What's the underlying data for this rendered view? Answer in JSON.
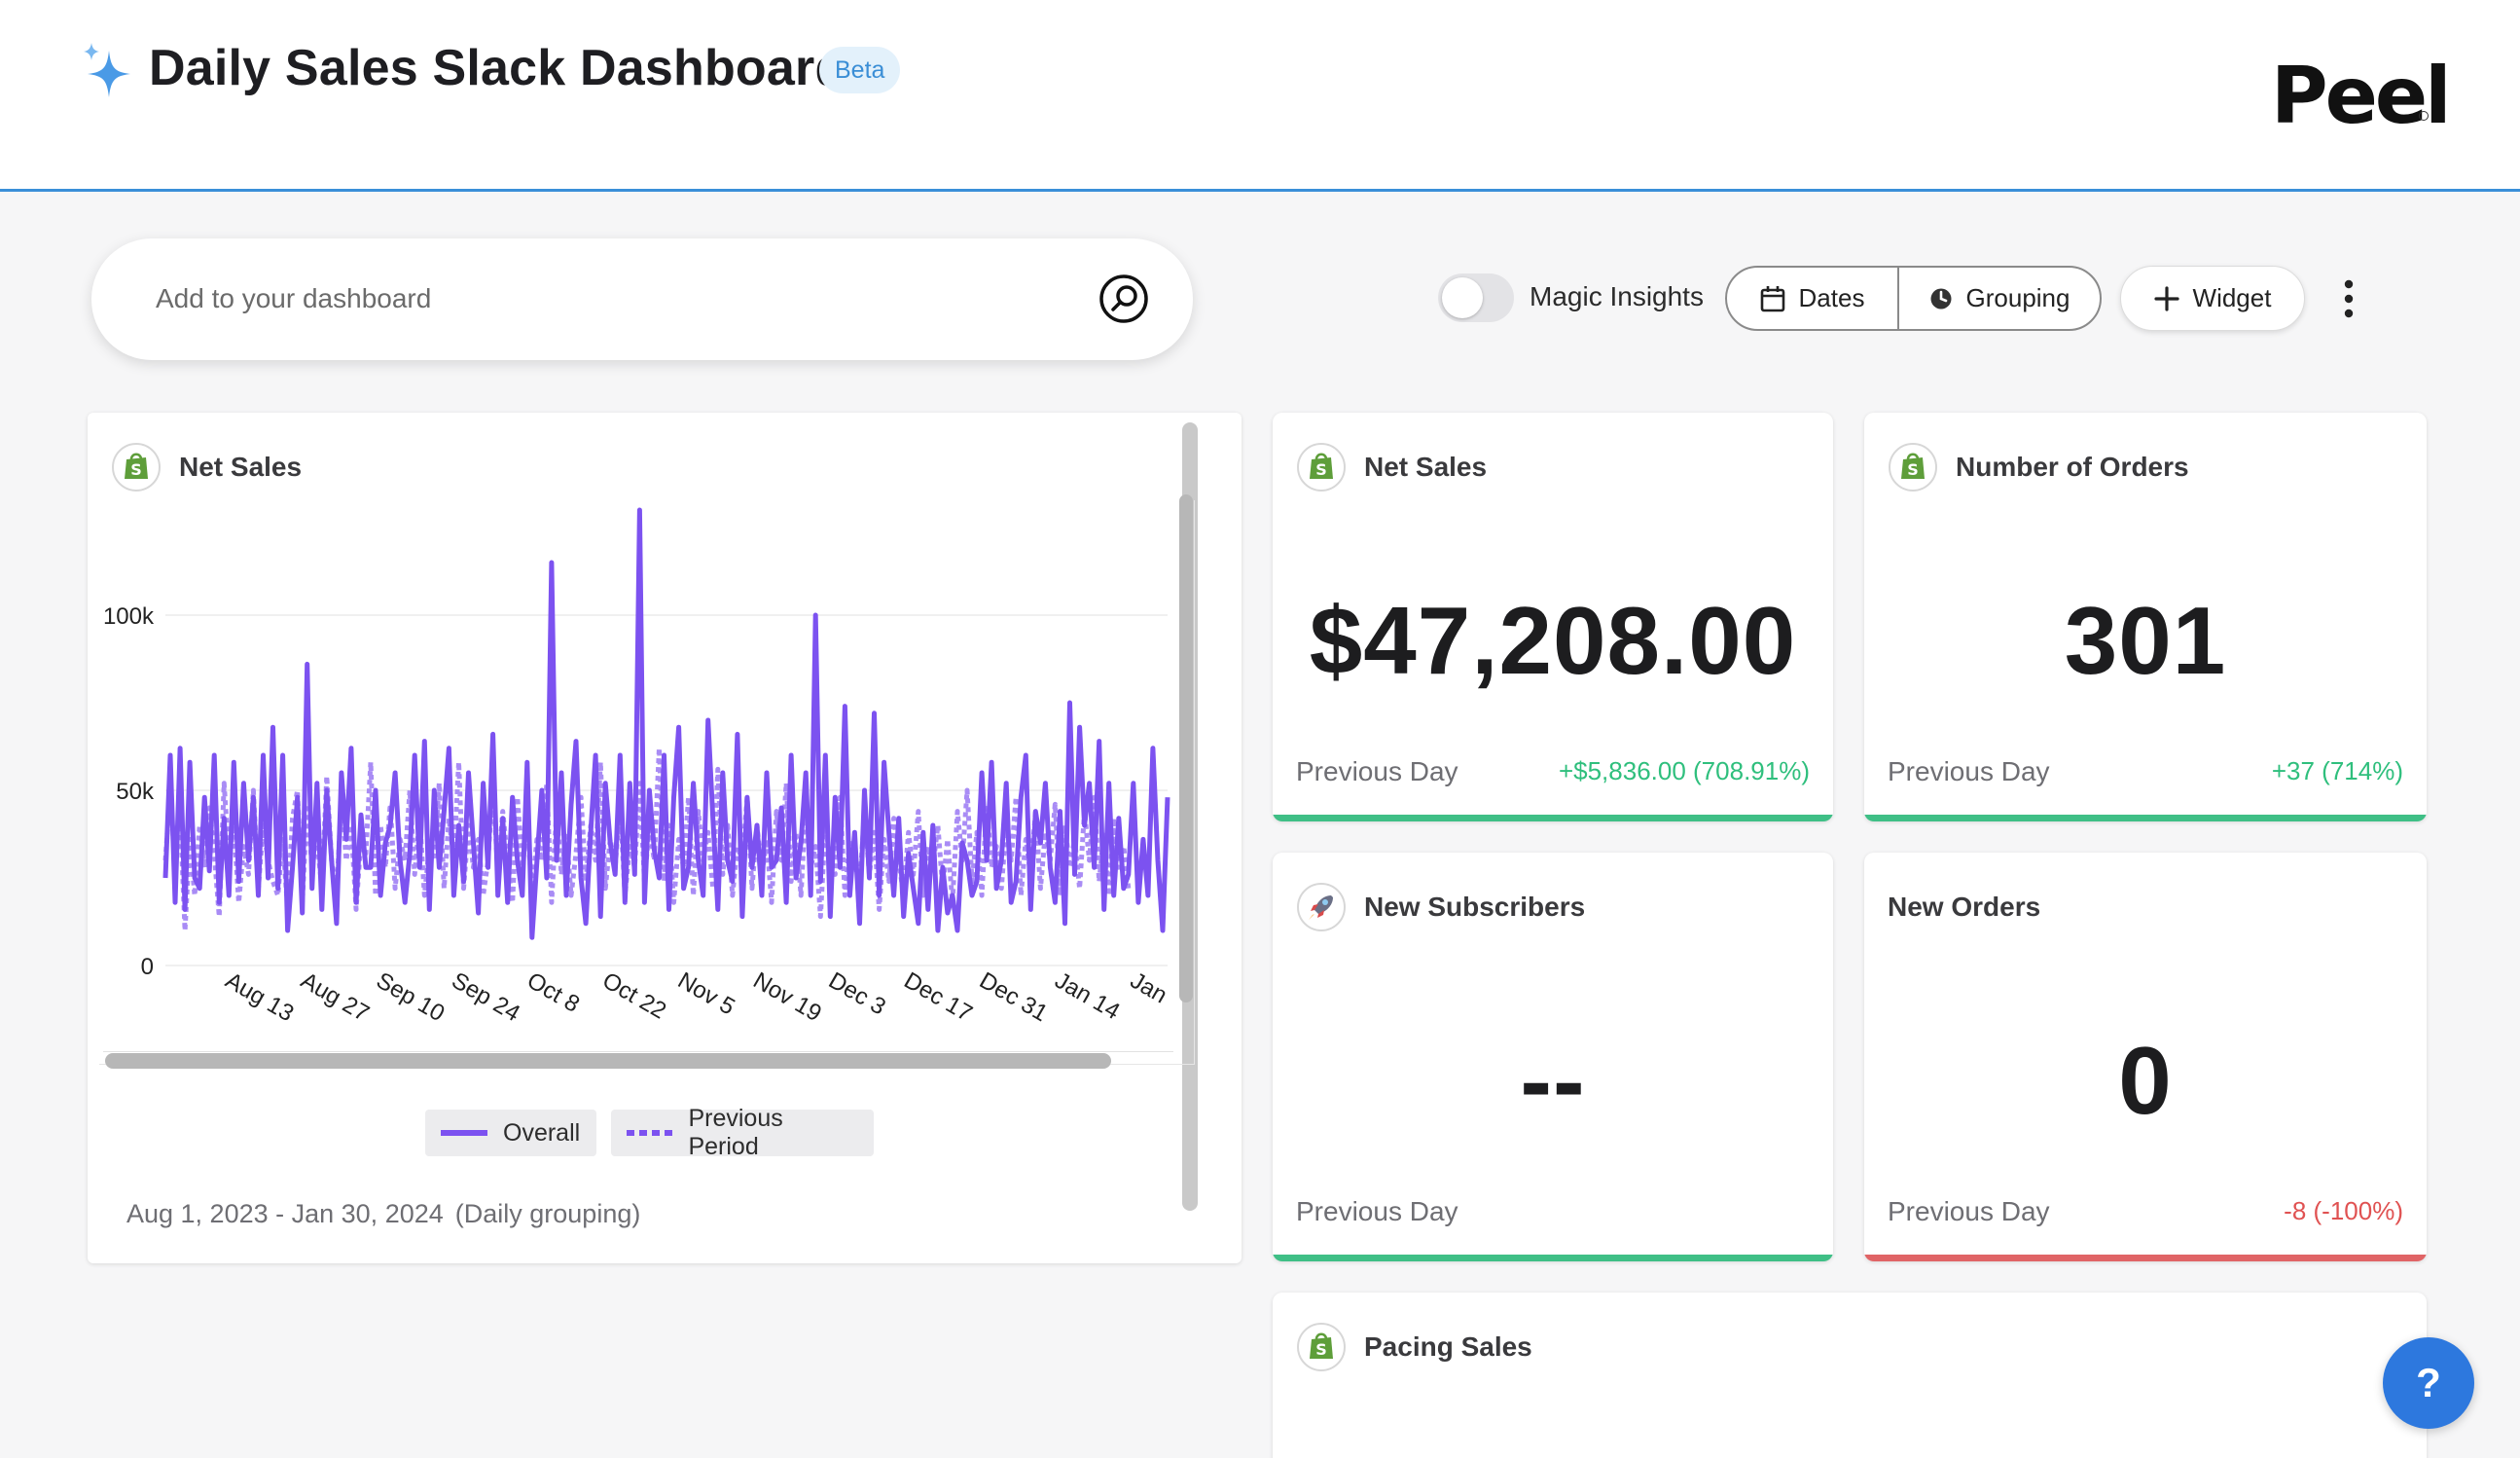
{
  "header": {
    "title": "Daily Sales Slack Dashboard",
    "badge": "Beta",
    "logo": "Peel",
    "icon": "sparkle-icon"
  },
  "toolbar": {
    "search_placeholder": "Add to your dashboard",
    "magic_insights_label": "Magic Insights",
    "magic_insights_on": false,
    "dates_label": "Dates",
    "grouping_label": "Grouping",
    "widget_label": "Widget"
  },
  "colors": {
    "accent_blue": "#3a8fd8",
    "series_purple": "#7c52f0",
    "positive": "#2fbf7d",
    "negative": "#e05252"
  },
  "net_sales_chart": {
    "title": "Net Sales",
    "footer_range": "Aug 1, 2023 - Jan 30, 2024",
    "footer_grouping": "(Daily grouping)",
    "chart_data": {
      "type": "line",
      "y_ticks": [
        "0",
        "50k",
        "100k"
      ],
      "ylim": [
        0,
        130000
      ],
      "x_ticks": [
        "Aug 13",
        "Aug 27",
        "Sep 10",
        "Sep 24",
        "Oct 8",
        "Oct 22",
        "Nov 5",
        "Nov 19",
        "Dec 3",
        "Dec 17",
        "Dec 31",
        "Jan 14",
        "Jan"
      ],
      "legend_placement": "bottom",
      "series": [
        {
          "name": "Overall",
          "style": "solid",
          "values": [
            25000,
            60000,
            18000,
            62000,
            16000,
            58000,
            25000,
            22000,
            48000,
            27000,
            60000,
            18000,
            42000,
            20000,
            58000,
            24000,
            52000,
            30000,
            48000,
            20000,
            60000,
            25000,
            68000,
            22000,
            60000,
            10000,
            28000,
            48000,
            15000,
            86000,
            22000,
            52000,
            16000,
            50000,
            30000,
            12000,
            55000,
            36000,
            62000,
            18000,
            43000,
            28000,
            28000,
            50000,
            20000,
            35000,
            40000,
            55000,
            30000,
            18000,
            32000,
            60000,
            28000,
            64000,
            16000,
            50000,
            28000,
            44000,
            62000,
            20000,
            40000,
            24000,
            55000,
            35000,
            15000,
            52000,
            28000,
            66000,
            20000,
            42000,
            18000,
            48000,
            30000,
            20000,
            58000,
            8000,
            30000,
            50000,
            25000,
            115000,
            30000,
            55000,
            20000,
            46000,
            64000,
            25000,
            12000,
            38000,
            60000,
            14000,
            52000,
            35000,
            26000,
            60000,
            18000,
            52000,
            26000,
            130000,
            18000,
            50000,
            33000,
            25000,
            60000,
            16000,
            48000,
            68000,
            22000,
            28000,
            52000,
            30000,
            20000,
            70000,
            42000,
            16000,
            55000,
            30000,
            24000,
            66000,
            14000,
            48000,
            28000,
            40000,
            20000,
            55000,
            28000,
            30000,
            45000,
            18000,
            60000,
            25000,
            35000,
            55000,
            20000,
            100000,
            24000,
            60000,
            14000,
            48000,
            28000,
            74000,
            20000,
            38000,
            12000,
            50000,
            25000,
            72000,
            20000,
            58000,
            38000,
            20000,
            42000,
            14000,
            32000,
            22000,
            12000,
            38000,
            16000,
            40000,
            10000,
            28000,
            15000,
            20000,
            10000,
            35000,
            30000,
            20000,
            24000,
            55000,
            30000,
            58000,
            22000,
            30000,
            52000,
            18000,
            24000,
            48000,
            60000,
            16000,
            44000,
            35000,
            52000,
            28000,
            18000,
            44000,
            12000,
            75000,
            26000,
            68000,
            40000,
            52000,
            28000,
            64000,
            16000,
            52000,
            20000,
            42000,
            22000,
            26000,
            52000,
            18000,
            36000,
            20000,
            62000,
            30000,
            10000,
            48000
          ]
        },
        {
          "name": "Previous Period",
          "style": "dotted",
          "values": [
            30000,
            50000,
            28000,
            44000,
            10000,
            36000,
            20000,
            40000,
            28000,
            45000,
            32000,
            14000,
            52000,
            30000,
            40000,
            18000,
            34000,
            26000,
            50000,
            22000,
            40000,
            30000,
            24000,
            20000,
            36000,
            16000,
            42000,
            50000,
            18000,
            46000,
            28000,
            36000,
            22000,
            54000,
            30000,
            20000,
            48000,
            30000,
            40000,
            16000,
            36000,
            32000,
            58000,
            20000,
            40000,
            28000,
            46000,
            22000,
            36000,
            30000,
            50000,
            26000,
            42000,
            20000,
            34000,
            30000,
            52000,
            22000,
            42000,
            30000,
            58000,
            22000,
            40000,
            28000,
            36000,
            20000,
            30000,
            52000,
            26000,
            44000,
            30000,
            18000,
            48000,
            28000,
            40000,
            22000,
            36000,
            30000,
            52000,
            18000,
            44000,
            26000,
            38000,
            20000,
            32000,
            48000,
            24000,
            40000,
            30000,
            58000,
            22000,
            36000,
            28000,
            46000,
            20000,
            34000,
            28000,
            52000,
            24000,
            40000,
            30000,
            62000,
            24000,
            40000,
            18000,
            36000,
            28000,
            48000,
            20000,
            44000,
            30000,
            38000,
            22000,
            56000,
            26000,
            40000,
            20000,
            34000,
            30000,
            48000,
            22000,
            40000,
            26000,
            36000,
            18000,
            44000,
            30000,
            52000,
            24000,
            38000,
            20000,
            46000,
            28000,
            34000,
            14000,
            40000,
            30000,
            26000,
            48000,
            20000,
            36000,
            30000,
            22000,
            44000,
            26000,
            38000,
            16000,
            36000,
            24000,
            42000,
            30000,
            20000,
            38000,
            26000,
            44000,
            20000,
            34000,
            28000,
            40000,
            22000,
            36000,
            18000,
            44000,
            30000,
            50000,
            24000,
            38000,
            20000,
            46000,
            28000,
            34000,
            22000,
            40000,
            30000,
            48000,
            20000,
            36000,
            26000,
            44000,
            22000,
            38000,
            30000,
            46000,
            20000,
            40000,
            28000,
            36000,
            22000,
            44000,
            30000,
            48000,
            24000,
            38000,
            20000,
            42000,
            28000,
            34000,
            22000
          ]
        }
      ]
    }
  },
  "cards": {
    "net_sales": {
      "title": "Net Sales",
      "value": "$47,208.00",
      "prev_label": "Previous Day",
      "delta": "+$5,836.00 (708.91%)"
    },
    "number_of_orders": {
      "title": "Number of Orders",
      "value": "301",
      "prev_label": "Previous Day",
      "delta": "+37 (714%)"
    },
    "new_subscribers": {
      "title": "New Subscribers",
      "value": "--",
      "prev_label": "Previous Day",
      "delta": ""
    },
    "new_orders": {
      "title": "New Orders",
      "value": "0",
      "prev_label": "Previous Day",
      "delta": "-8 (-100%)"
    },
    "pacing_sales": {
      "title": "Pacing Sales"
    }
  },
  "help_button": {
    "label": "?"
  }
}
